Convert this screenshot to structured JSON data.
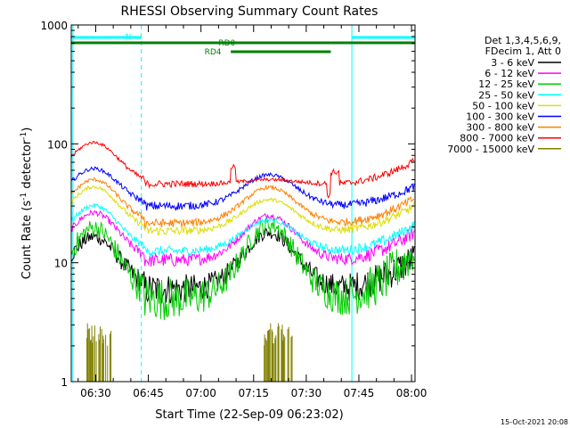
{
  "chart_data": {
    "type": "line",
    "title": "RHESSI Observing Summary Count Rates",
    "xlabel": "Start Time (22-Sep-09 06:23:02)",
    "ylabel_main": "Count Rate (s",
    "ylabel_sup1": "-1",
    "ylabel_mid": " detector",
    "ylabel_sup2": "-1",
    "ylabel_end": ")",
    "yscale": "log",
    "ylim": [
      1,
      1000
    ],
    "xlim_minutes": [
      23.03,
      121.0
    ],
    "x_ticks": [
      {
        "minutes": 30,
        "label": "06:30"
      },
      {
        "minutes": 45,
        "label": "06:45"
      },
      {
        "minutes": 60,
        "label": "07:00"
      },
      {
        "minutes": 75,
        "label": "07:15"
      },
      {
        "minutes": 90,
        "label": "07:30"
      },
      {
        "minutes": 105,
        "label": "07:45"
      },
      {
        "minutes": 120,
        "label": "08:00"
      }
    ],
    "y_ticks": [
      {
        "value": 1,
        "label": "1"
      },
      {
        "value": 10,
        "label": "10"
      },
      {
        "value": 100,
        "label": "100"
      },
      {
        "value": 1000,
        "label": "1000"
      }
    ],
    "legend_header": [
      "Det 1,3,4,5,6,9,",
      "FDecim 1, Att 0"
    ],
    "series": [
      {
        "name": "3 - 6 keV",
        "color": "#000000",
        "base": 6.0,
        "peak": 18.0,
        "noise": 0.18,
        "start_level": 12.5
      },
      {
        "name": "6 - 12 keV",
        "color": "#ff00ff",
        "base": 10.5,
        "peak": 25.0,
        "noise": 0.08,
        "start_level": 20.0
      },
      {
        "name": "12 - 25 keV",
        "color": "#00cc00",
        "base": 5.0,
        "peak": 21.0,
        "noise": 0.25,
        "start_level": 15.0
      },
      {
        "name": "25 - 50 keV",
        "color": "#00ffff",
        "base": 12.5,
        "peak": 23.0,
        "noise": 0.06,
        "start_level": 23.0
      },
      {
        "name": "50 - 100 keV",
        "color": "#dddd00",
        "base": 18.5,
        "peak": 34.0,
        "noise": 0.05,
        "start_level": 33.0
      },
      {
        "name": "100 - 300 keV",
        "color": "#0000ff",
        "base": 30.0,
        "peak": 55.0,
        "noise": 0.05,
        "start_level": 47.0
      },
      {
        "name": "300 - 800 keV",
        "color": "#ff8000",
        "base": 21.5,
        "peak": 43.0,
        "noise": 0.05,
        "start_level": 38.0
      },
      {
        "name": "800 - 7000 keV",
        "color": "#ff0000",
        "base": 46.0,
        "peak": 50.0,
        "noise": 0.04,
        "start_level": 78.0
      },
      {
        "name": "7000 - 15000 keV",
        "color": "#808000",
        "base": 1.0,
        "peak": 1.0,
        "noise": 0.0,
        "start_level": 1.0
      }
    ],
    "orbit_structure": {
      "saa_peak_minutes": [
        29.5,
        79.5
      ],
      "saa_end_minutes": [
        43.0
      ],
      "night_start_minutes": [
        55.0
      ],
      "rd4_switch_minutes": [
        68.5,
        97.0
      ],
      "night_end_minutes": [
        103.0
      ]
    },
    "flag_bars": [
      {
        "label": "N",
        "color": "#00ffff",
        "level": 2,
        "segments": [
          [
            23.03,
            43.0
          ],
          [
            103.0,
            121.0
          ]
        ]
      },
      {
        "label": "RD0",
        "color": "#008000",
        "level": 1,
        "segments": [
          [
            23.03,
            97.0
          ],
          [
            97.0,
            121.0
          ]
        ]
      },
      {
        "label": "RD4",
        "color": "#008000",
        "level": 0,
        "segments": [
          [
            68.5,
            97.0
          ]
        ]
      }
    ],
    "vertical_markers": [
      {
        "minutes": 23.5,
        "style": "solid",
        "color": "#00ffff"
      },
      {
        "minutes": 43.0,
        "style": "dashed",
        "color": "#00ffff"
      },
      {
        "minutes": 103.0,
        "style": "solid",
        "color": "#00ffff"
      },
      {
        "minutes": 121.0,
        "style": "dashed",
        "color": "#00ffff"
      }
    ],
    "spike_bursts": [
      [
        27.5,
        34.5
      ],
      [
        78.0,
        86.0
      ]
    ]
  },
  "footer_date": "15-Oct-2021 20:08"
}
